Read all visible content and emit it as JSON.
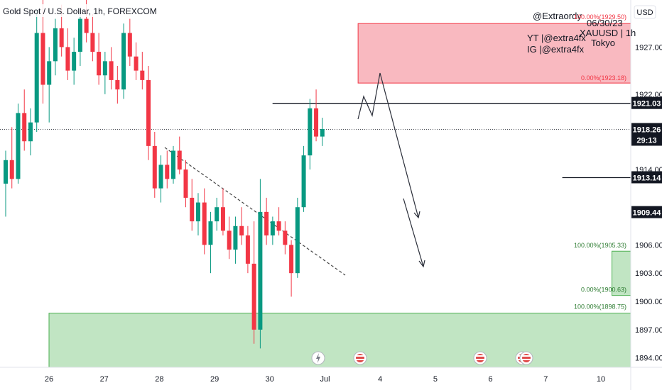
{
  "header": {
    "title": "Gold Spot / U.S. Dollar, 1h, FOREXCOM",
    "currency_button": "USD"
  },
  "overlay_text": {
    "handle": "@Extraordy",
    "date": "06/30/23",
    "instrument": "XAUUSD | 1h",
    "session": "Tokyo",
    "yt": "YT |@extra4fx",
    "ig": "IG |@extra4fx"
  },
  "price_tags": {
    "level_1": "1921.03",
    "current": "1918.26",
    "countdown": "29:13",
    "level_2": "1913.14",
    "level_3": "1909.44"
  },
  "zone_labels": {
    "red_top": "100.00%(1929.50)",
    "red_bottom": "0.00%(1923.18)",
    "green_top": "100.00%(1905.33)",
    "green_bottom": "0.00%(1900.63)",
    "green_lower_top": "100.00%(1898.75)"
  },
  "colors": {
    "up": "#089981",
    "down": "#f23645",
    "red_zone": "#f7a8b0",
    "green_zone": "#b6e0b9",
    "grey_zone": "#c9c9cc"
  },
  "chart_data": {
    "type": "candlestick",
    "title": "Gold Spot / U.S. Dollar, 1h, FOREXCOM",
    "y_ticks": [
      1894,
      1897,
      1900,
      1903,
      1906,
      1909,
      1911,
      1914,
      1917,
      1920,
      1922,
      1924,
      1927,
      1930
    ],
    "y_tick_labels": [
      "1894.00",
      "1897.00",
      "1900.00",
      "1903.00",
      "1906.00",
      "",
      "",
      "1914.00",
      "",
      "",
      "1922.00",
      "",
      "1927.00",
      ""
    ],
    "ylim": [
      1893.0,
      1932.0
    ],
    "x_ticks": [
      "26",
      "27",
      "28",
      "29",
      "30",
      "Jul",
      "4",
      "5",
      "6",
      "7",
      "10"
    ],
    "zones": [
      {
        "name": "red",
        "from_time": 5.6,
        "to_time": 23.5,
        "top": 1929.5,
        "bottom": 1923.18
      },
      {
        "name": "grey",
        "from_time": 11.3,
        "to_time": 15.7,
        "top": 1925.0,
        "bottom": 1919.2
      },
      {
        "name": "green",
        "from_time": 10.2,
        "to_time": 23.5,
        "top": 1905.33,
        "bottom": 1900.63
      },
      {
        "name": "green-lower",
        "from_time": 0.0,
        "to_time": 23.5,
        "top": 1898.75,
        "bottom": 1893.0
      }
    ],
    "horizontal_levels": [
      {
        "price": 1921.03,
        "from_time": 4.05
      },
      {
        "price": 1913.14,
        "from_time": 9.3
      },
      {
        "price": 1909.44,
        "from_time": 14.0
      }
    ],
    "current_price": 1918.26,
    "candles_per_slot": 0.25,
    "candles": [
      [
        1912.5,
        1916.0,
        1909.0,
        1915.0
      ],
      [
        1915.0,
        1918.5,
        1912.0,
        1913.0
      ],
      [
        1913.0,
        1921.0,
        1912.5,
        1920.0
      ],
      [
        1920.0,
        1922.5,
        1916.0,
        1917.0
      ],
      [
        1917.0,
        1920.5,
        1915.5,
        1919.0
      ],
      [
        1919.0,
        1931.0,
        1918.0,
        1928.5
      ],
      [
        1928.5,
        1932.0,
        1921.0,
        1923.0
      ],
      [
        1923.0,
        1927.0,
        1919.0,
        1925.5
      ],
      [
        1925.5,
        1930.0,
        1924.0,
        1929.0
      ],
      [
        1929.0,
        1931.5,
        1926.0,
        1927.0
      ],
      [
        1927.0,
        1929.0,
        1923.5,
        1924.5
      ],
      [
        1924.5,
        1928.0,
        1923.0,
        1926.5
      ],
      [
        1926.5,
        1931.0,
        1925.0,
        1930.0
      ],
      [
        1930.0,
        1932.0,
        1927.5,
        1928.5
      ],
      [
        1928.5,
        1930.5,
        1925.5,
        1926.5
      ],
      [
        1926.5,
        1928.5,
        1923.0,
        1924.0
      ],
      [
        1924.0,
        1926.5,
        1922.0,
        1925.5
      ],
      [
        1925.5,
        1927.0,
        1922.5,
        1923.5
      ],
      [
        1923.5,
        1925.0,
        1921.0,
        1922.5
      ],
      [
        1922.5,
        1929.5,
        1921.5,
        1928.5
      ],
      [
        1928.5,
        1930.0,
        1925.0,
        1926.0
      ],
      [
        1926.0,
        1927.5,
        1923.5,
        1924.5
      ],
      [
        1924.5,
        1926.5,
        1922.5,
        1923.5
      ],
      [
        1923.5,
        1925.0,
        1915.0,
        1916.5
      ],
      [
        1916.5,
        1918.0,
        1911.0,
        1912.0
      ],
      [
        1912.0,
        1915.5,
        1910.5,
        1914.5
      ],
      [
        1914.5,
        1916.0,
        1912.0,
        1913.0
      ],
      [
        1913.0,
        1916.5,
        1912.5,
        1916.0
      ],
      [
        1916.0,
        1917.5,
        1913.5,
        1914.0
      ],
      [
        1914.0,
        1915.0,
        1910.0,
        1911.0
      ],
      [
        1911.0,
        1913.0,
        1907.5,
        1908.5
      ],
      [
        1908.5,
        1911.5,
        1907.0,
        1910.5
      ],
      [
        1910.5,
        1912.0,
        1905.0,
        1906.0
      ],
      [
        1906.0,
        1909.5,
        1903.0,
        1908.5
      ],
      [
        1908.5,
        1911.0,
        1907.5,
        1910.0
      ],
      [
        1910.0,
        1912.0,
        1907.0,
        1907.5
      ],
      [
        1907.5,
        1909.0,
        1904.5,
        1905.5
      ],
      [
        1905.5,
        1909.0,
        1904.0,
        1908.0
      ],
      [
        1908.0,
        1910.0,
        1906.0,
        1907.0
      ],
      [
        1907.0,
        1908.0,
        1903.0,
        1904.0
      ],
      [
        1904.0,
        1908.5,
        1895.5,
        1897.0
      ],
      [
        1897.0,
        1913.0,
        1895.0,
        1909.5
      ],
      [
        1909.5,
        1911.0,
        1906.0,
        1907.0
      ],
      [
        1907.0,
        1909.0,
        1906.0,
        1908.5
      ],
      [
        1908.5,
        1910.0,
        1907.0,
        1907.5
      ],
      [
        1907.5,
        1908.5,
        1905.0,
        1906.0
      ],
      [
        1906.0,
        1906.5,
        1900.5,
        1903.0
      ],
      [
        1903.0,
        1911.0,
        1902.5,
        1910.0
      ],
      [
        1910.0,
        1916.5,
        1909.5,
        1915.5
      ],
      [
        1915.5,
        1921.5,
        1914.0,
        1920.5
      ],
      [
        1920.5,
        1922.5,
        1917.0,
        1917.5
      ],
      [
        1917.5,
        1919.5,
        1916.5,
        1918.3
      ]
    ]
  }
}
